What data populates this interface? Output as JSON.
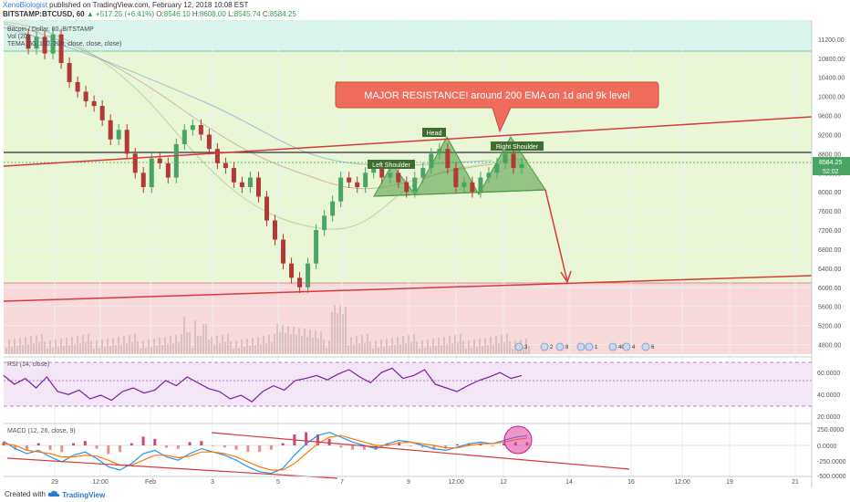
{
  "header": {
    "author": "XenoBiologist",
    "published": "published on TradingView.com, February 12, 2018 10:08 EST",
    "symbol": "BITSTAMP:BTCUSD, 60",
    "change": "▲ +517.25 (+6.41%)",
    "ohlc": [
      {
        "label": "O:",
        "value": "8546.10"
      },
      {
        "label": "H:",
        "value": "8608.00"
      },
      {
        "label": "L:",
        "value": "8545.74"
      },
      {
        "label": "C:",
        "value": "8584.25"
      }
    ]
  },
  "legend": {
    "line1": "Bitcoin / Dollar, 60, BITSTAMP",
    "line2": "Vol (20)",
    "line3": "TEMA (50, 100, 200, close, close, close)"
  },
  "annotations": {
    "callout": "MAJOR RESISTANCE! around 200 EMA on 1d and 9k level",
    "head": "Head",
    "left_shoulder": "Left Shoulder",
    "right_shoulder": "Right Shoulder"
  },
  "price_tags": {
    "last": "8584.25",
    "timer": "52:02"
  },
  "events": [
    "3",
    "2",
    "8",
    "5",
    "1",
    "40",
    "4",
    "6"
  ],
  "rsi": {
    "label": "RSI (14, close)",
    "levels": [
      "60.0000",
      "40.0000",
      "20.0000"
    ]
  },
  "macd": {
    "label": "MACD (12, 26, close, 9)",
    "levels": [
      "250.0000",
      "0.0000",
      "-250.0000",
      "-500.0000"
    ]
  },
  "footer": {
    "created": "Created with",
    "brand": "TradingView"
  },
  "colors": {
    "resistance_line": "#d63a3a",
    "bull_candle": "#4aa564",
    "bear_candle": "#b13a35",
    "pattern_fill": "#4d9a3c",
    "rsi_line": "#7b1fa2",
    "macd_line": "#2196f3",
    "signal_line": "#ff7a00",
    "zone_top": "#d8f3ea",
    "zone_mid": "#e9f7d5",
    "zone_bottom": "#f7d9d9"
  },
  "chart_data": {
    "type": "line",
    "title": "Bitcoin / Dollar, 60, BITSTAMP",
    "y_ticks": [
      "11200.00",
      "10800.00",
      "10400.00",
      "10000.00",
      "9600.00",
      "9200.00",
      "8800.00",
      "8400.00",
      "8000.00",
      "7600.00",
      "7200.00",
      "6800.00",
      "6400.00",
      "6000.00",
      "5600.00",
      "5200.00",
      "4800.00"
    ],
    "x_ticks": [
      "29",
      "12:00",
      "Feb",
      "3",
      "5",
      "7",
      "9",
      "12:00",
      "12",
      "14",
      "16",
      "12:00",
      "19",
      "21"
    ],
    "ylim": [
      4600,
      11600
    ],
    "series": [
      {
        "values": [
          11300,
          11000,
          11250,
          10900,
          11300,
          10700,
          10300,
          10100,
          9900,
          9800,
          9500,
          9100,
          9300,
          8800,
          8400,
          8100,
          8700,
          8600,
          8300,
          9000,
          9300,
          9400,
          9200,
          8900,
          8600,
          8500,
          8200,
          8100,
          8300,
          7900,
          7400,
          7000,
          6500,
          6200,
          6000,
          6500,
          7200,
          7500,
          7800,
          8300,
          8200,
          8100,
          8400,
          8500,
          8300,
          8400,
          8200,
          8000,
          8300,
          8500,
          8800,
          8900,
          8500,
          8100,
          8200,
          8000,
          8300,
          8400,
          8600,
          8800,
          8500,
          8584
        ]
      }
    ]
  }
}
